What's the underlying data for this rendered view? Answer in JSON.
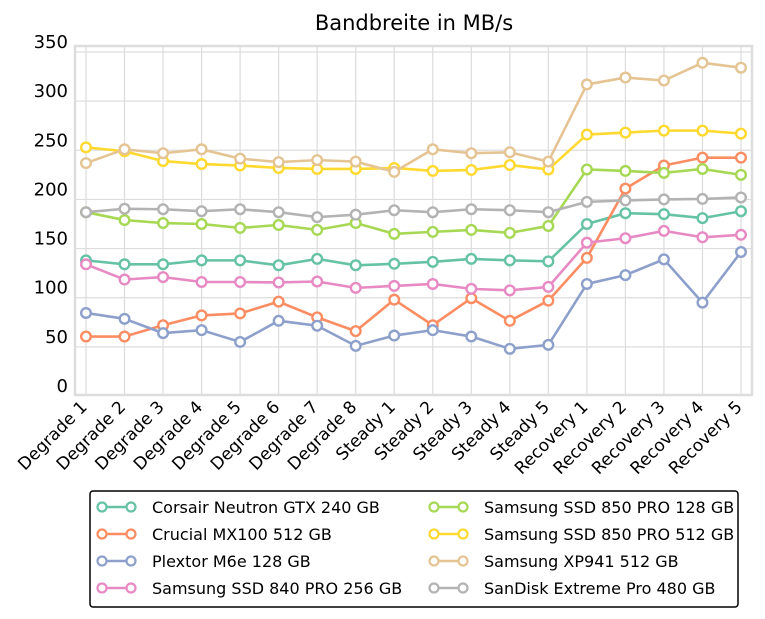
{
  "chart_data": {
    "type": "line",
    "title": "Bandbreite in MB/s",
    "xlabel": "",
    "ylabel": "",
    "ylim": [
      0,
      350
    ],
    "yticks": [
      0,
      50,
      100,
      150,
      200,
      250,
      300,
      350
    ],
    "grid": true,
    "legend_position": "bottom",
    "categories": [
      "Degrade 1",
      "Degrade 2",
      "Degrade 3",
      "Degrade 4",
      "Degrade 5",
      "Degrade 6",
      "Degrade 7",
      "Degrade 8",
      "Steady 1",
      "Steady 2",
      "Steady 3",
      "Steady 4",
      "Steady 5",
      "Recovery 1",
      "Recovery 2",
      "Recovery 3",
      "Recovery 4",
      "Recovery 5"
    ],
    "series": [
      {
        "name": "Corsair Neutron GTX 240 GB",
        "color": "#66c2a5",
        "values": [
          138,
          134,
          134,
          138,
          138,
          133,
          139.5,
          133,
          134.5,
          136.5,
          139.5,
          138,
          137,
          175,
          186,
          185,
          181,
          188
        ]
      },
      {
        "name": "Crucial MX100 512 GB",
        "color": "#fc8d62",
        "values": [
          60.5,
          60.5,
          72,
          82,
          84,
          96,
          80,
          66,
          98,
          72,
          99.5,
          76.5,
          97,
          140.5,
          211,
          234.5,
          242.5,
          242.5
        ]
      },
      {
        "name": "Plextor M6e 128 GB",
        "color": "#8da0cb",
        "values": [
          84.5,
          78.5,
          64,
          67,
          55,
          76.5,
          71.5,
          51,
          61.5,
          67,
          60.5,
          48,
          52,
          114,
          123,
          139,
          95,
          146.5
        ]
      },
      {
        "name": "Samsung SSD 840 PRO 256 GB",
        "color": "#e78ac3",
        "values": [
          134,
          118.5,
          121,
          116,
          116,
          115.5,
          116.5,
          110,
          112,
          114,
          109,
          107.5,
          111,
          156,
          160.5,
          168,
          161.5,
          164
        ]
      },
      {
        "name": "Samsung SSD 850 PRO 128 GB",
        "color": "#a6d854",
        "values": [
          187,
          179,
          176,
          175,
          171,
          174,
          169,
          176,
          165,
          167,
          169,
          166,
          173,
          230.5,
          229,
          227,
          231,
          225
        ]
      },
      {
        "name": "Samsung SSD 850 PRO 512 GB",
        "color": "#ffd92f",
        "values": [
          253,
          249,
          239,
          236,
          234.5,
          232,
          231,
          231,
          232,
          229,
          230,
          235,
          230.5,
          266,
          268,
          270,
          270,
          267
        ]
      },
      {
        "name": "Samsung XP941 512 GB",
        "color": "#e5c494",
        "values": [
          237,
          251,
          247,
          251,
          241.5,
          238,
          240,
          238.5,
          228,
          251,
          247,
          248,
          238.5,
          317,
          324,
          321,
          339,
          334
        ]
      },
      {
        "name": "SanDisk Extreme Pro 480 GB",
        "color": "#b3b3b3",
        "values": [
          187,
          190.5,
          190,
          188,
          190,
          187,
          182,
          184.5,
          189,
          187,
          190,
          189,
          187,
          197.5,
          199,
          200,
          200.5,
          202
        ]
      }
    ]
  }
}
